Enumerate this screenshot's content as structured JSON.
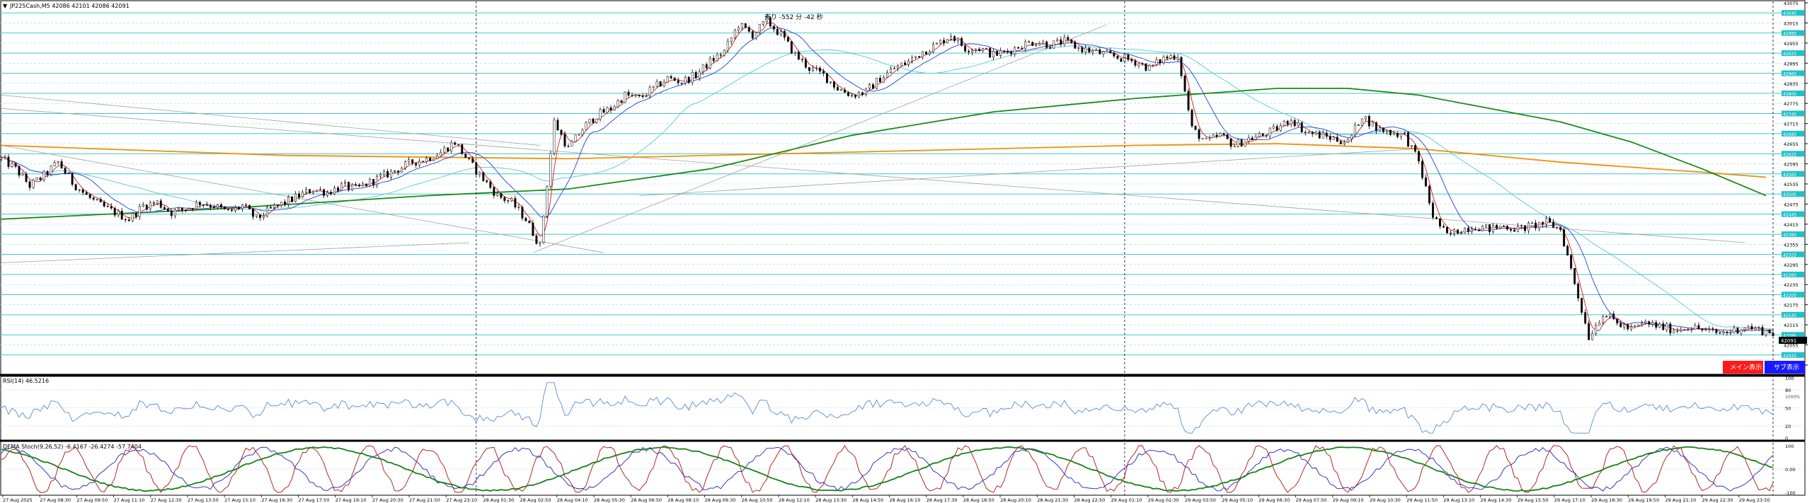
{
  "header": {
    "symbol_line": "JP225Cash,M5  42086 42101 42086 42091",
    "sell_label": "売り -552 分 -42 秒"
  },
  "buttons": {
    "main_label": "メイン表示",
    "sub_label": "サブ表示"
  },
  "colors": {
    "candle": "#000000",
    "hline": "#40c8c8",
    "ma_fast": "#d81818",
    "ma_mid": "#2040d8",
    "ma_slow_cyan": "#58c8d0",
    "ma_200_green": "#1a8a1a",
    "ma_orange": "#f0900a",
    "trend": "#a0a0a0",
    "rsi": "#5a8ad8",
    "stoch_red": "#b01010",
    "stoch_blue": "#2020c0",
    "stoch_green": "#188018",
    "main_button": "#ff1a1a",
    "sub_button": "#1a1aff",
    "label_box": "#20c0c8"
  },
  "price_axis": {
    "ticks": [
      "43075",
      "43015",
      "42955",
      "42895",
      "42835",
      "42775",
      "42715",
      "42655",
      "42595",
      "42535",
      "42475",
      "42415",
      "42355",
      "42295",
      "42235",
      "42175",
      "42115",
      "42055",
      "41995"
    ],
    "current_price": "42091",
    "cyan_labels": [
      "43045",
      "42985",
      "42925",
      "42865",
      "42805",
      "42745",
      "42685",
      "42625",
      "42565",
      "42505",
      "42445",
      "42385",
      "42325",
      "42265",
      "42205",
      "42145",
      "42085",
      "42025"
    ]
  },
  "rsi_panel": {
    "label": "RSI(14) 46.5216",
    "ticks": [
      "100",
      "80",
      "50",
      "20",
      "0"
    ],
    "extra_tick": "1000%"
  },
  "stoch_panel": {
    "label": "DEMA Stoch(9,26,52) -6.4167 -26.4274 -57.7404",
    "ticks": [
      "100",
      "0.00",
      "-100"
    ]
  },
  "time_axis": [
    "27 Aug 2025",
    "27 Aug 08:30",
    "27 Aug 09:50",
    "27 Aug 11:10",
    "27 Aug 12:30",
    "27 Aug 13:50",
    "27 Aug 15:10",
    "27 Aug 16:30",
    "27 Aug 17:50",
    "27 Aug 19:10",
    "27 Aug 20:30",
    "27 Aug 21:50",
    "27 Aug 23:10",
    "28 Aug 01:30",
    "28 Aug 02:50",
    "28 Aug 04:10",
    "28 Aug 05:30",
    "28 Aug 06:50",
    "28 Aug 08:10",
    "28 Aug 09:30",
    "28 Aug 10:50",
    "28 Aug 12:10",
    "28 Aug 13:30",
    "28 Aug 14:50",
    "28 Aug 16:10",
    "28 Aug 17:30",
    "28 Aug 18:50",
    "28 Aug 20:10",
    "28 Aug 21:30",
    "28 Aug 22:50",
    "29 Aug 01:10",
    "29 Aug 02:30",
    "29 Aug 03:50",
    "29 Aug 05:10",
    "29 Aug 06:30",
    "29 Aug 07:50",
    "29 Aug 09:10",
    "29 Aug 10:30",
    "29 Aug 11:50",
    "29 Aug 13:10",
    "29 Aug 14:30",
    "29 Aug 15:50",
    "29 Aug 17:10",
    "29 Aug 18:30",
    "29 Aug 19:50",
    "29 Aug 21:10",
    "29 Aug 22:30",
    "29 Aug 23:50"
  ],
  "chart_data": {
    "type": "candlestick",
    "symbol": "JP225Cash",
    "timeframe": "M5",
    "ylim": [
      41995,
      43075
    ],
    "close_path": [
      [
        0,
        42610
      ],
      [
        20,
        42580
      ],
      [
        40,
        42530
      ],
      [
        60,
        42560
      ],
      [
        80,
        42600
      ],
      [
        100,
        42540
      ],
      [
        120,
        42500
      ],
      [
        140,
        42470
      ],
      [
        160,
        42450
      ],
      [
        180,
        42430
      ],
      [
        200,
        42470
      ],
      [
        220,
        42480
      ],
      [
        240,
        42450
      ],
      [
        260,
        42460
      ],
      [
        280,
        42480
      ],
      [
        300,
        42470
      ],
      [
        320,
        42450
      ],
      [
        340,
        42470
      ],
      [
        360,
        42430
      ],
      [
        380,
        42460
      ],
      [
        400,
        42480
      ],
      [
        420,
        42500
      ],
      [
        440,
        42520
      ],
      [
        460,
        42510
      ],
      [
        480,
        42530
      ],
      [
        500,
        42520
      ],
      [
        520,
        42540
      ],
      [
        540,
        42560
      ],
      [
        560,
        42580
      ],
      [
        580,
        42600
      ],
      [
        600,
        42610
      ],
      [
        620,
        42630
      ],
      [
        640,
        42660
      ],
      [
        660,
        42600
      ],
      [
        680,
        42550
      ],
      [
        700,
        42500
      ],
      [
        720,
        42480
      ],
      [
        740,
        42430
      ],
      [
        760,
        42350
      ],
      [
        780,
        42720
      ],
      [
        800,
        42640
      ],
      [
        820,
        42700
      ],
      [
        840,
        42740
      ],
      [
        860,
        42760
      ],
      [
        880,
        42800
      ],
      [
        900,
        42790
      ],
      [
        920,
        42820
      ],
      [
        940,
        42850
      ],
      [
        960,
        42840
      ],
      [
        980,
        42860
      ],
      [
        1000,
        42900
      ],
      [
        1020,
        42930
      ],
      [
        1040,
        43010
      ],
      [
        1060,
        42980
      ],
      [
        1080,
        43020
      ],
      [
        1100,
        42980
      ],
      [
        1120,
        42920
      ],
      [
        1140,
        42880
      ],
      [
        1160,
        42860
      ],
      [
        1180,
        42820
      ],
      [
        1200,
        42800
      ],
      [
        1220,
        42810
      ],
      [
        1240,
        42850
      ],
      [
        1260,
        42880
      ],
      [
        1280,
        42900
      ],
      [
        1300,
        42930
      ],
      [
        1320,
        42950
      ],
      [
        1340,
        42980
      ],
      [
        1360,
        42940
      ],
      [
        1380,
        42940
      ],
      [
        1400,
        42920
      ],
      [
        1420,
        42930
      ],
      [
        1440,
        42950
      ],
      [
        1460,
        42960
      ],
      [
        1480,
        42950
      ],
      [
        1500,
        42960
      ],
      [
        1520,
        42940
      ],
      [
        1540,
        42930
      ],
      [
        1560,
        42920
      ],
      [
        1580,
        42910
      ],
      [
        1600,
        42900
      ],
      [
        1620,
        42880
      ],
      [
        1640,
        42910
      ],
      [
        1660,
        42920
      ],
      [
        1680,
        42700
      ],
      [
        1700,
        42660
      ],
      [
        1720,
        42680
      ],
      [
        1740,
        42650
      ],
      [
        1760,
        42670
      ],
      [
        1780,
        42680
      ],
      [
        1800,
        42700
      ],
      [
        1820,
        42730
      ],
      [
        1840,
        42690
      ],
      [
        1860,
        42680
      ],
      [
        1880,
        42670
      ],
      [
        1900,
        42660
      ],
      [
        1920,
        42740
      ],
      [
        1940,
        42700
      ],
      [
        1960,
        42690
      ],
      [
        1980,
        42680
      ],
      [
        2000,
        42600
      ],
      [
        2020,
        42440
      ],
      [
        2040,
        42380
      ],
      [
        2060,
        42400
      ],
      [
        2080,
        42410
      ],
      [
        2100,
        42400
      ],
      [
        2120,
        42410
      ],
      [
        2140,
        42400
      ],
      [
        2160,
        42410
      ],
      [
        2180,
        42420
      ],
      [
        2200,
        42400
      ],
      [
        2220,
        42240
      ],
      [
        2240,
        42080
      ],
      [
        2260,
        42150
      ],
      [
        2280,
        42120
      ],
      [
        2300,
        42100
      ],
      [
        2320,
        42120
      ],
      [
        2340,
        42110
      ],
      [
        2360,
        42100
      ],
      [
        2380,
        42110
      ],
      [
        2400,
        42100
      ],
      [
        2420,
        42090
      ],
      [
        2440,
        42095
      ],
      [
        2460,
        42110
      ],
      [
        2480,
        42100
      ],
      [
        2500,
        42091
      ]
    ],
    "ma_200_green": [
      [
        0,
        42430
      ],
      [
        300,
        42460
      ],
      [
        600,
        42500
      ],
      [
        800,
        42520
      ],
      [
        1000,
        42580
      ],
      [
        1200,
        42680
      ],
      [
        1400,
        42750
      ],
      [
        1600,
        42790
      ],
      [
        1800,
        42820
      ],
      [
        1900,
        42820
      ],
      [
        2000,
        42800
      ],
      [
        2100,
        42760
      ],
      [
        2200,
        42720
      ],
      [
        2300,
        42660
      ],
      [
        2400,
        42580
      ],
      [
        2490,
        42500
      ]
    ],
    "ma_orange": [
      [
        0,
        42650
      ],
      [
        400,
        42620
      ],
      [
        800,
        42610
      ],
      [
        1200,
        42630
      ],
      [
        1600,
        42650
      ],
      [
        1800,
        42655
      ],
      [
        2000,
        42640
      ],
      [
        2200,
        42600
      ],
      [
        2400,
        42570
      ],
      [
        2490,
        42555
      ]
    ],
    "trend_lines": [
      [
        [
          0,
          42800
        ],
        [
          760,
          42650
        ]
      ],
      [
        [
          0,
          42300
        ],
        [
          660,
          42360
        ]
      ],
      [
        [
          750,
          42330
        ],
        [
          1560,
          43010
        ]
      ],
      [
        [
          0,
          42650
        ],
        [
          850,
          42330
        ]
      ],
      [
        [
          0,
          42760
        ],
        [
          2460,
          42360
        ]
      ],
      [
        [
          900,
          42500
        ],
        [
          2000,
          42640
        ]
      ]
    ],
    "cyan_levels": [
      43045,
      42985,
      42925,
      42865,
      42805,
      42745,
      42685,
      42625,
      42565,
      42505,
      42445,
      42385,
      42325,
      42265,
      42205,
      42145,
      42085,
      42025
    ],
    "vertical_separators_x": [
      670,
      1585,
      2500
    ],
    "rsi": {
      "ylim": [
        0,
        100
      ],
      "last": 46.5216
    },
    "stoch": {
      "ylim": [
        -100,
        100
      ],
      "values": [
        -6.4167,
        -26.4274,
        -57.7404
      ]
    }
  }
}
